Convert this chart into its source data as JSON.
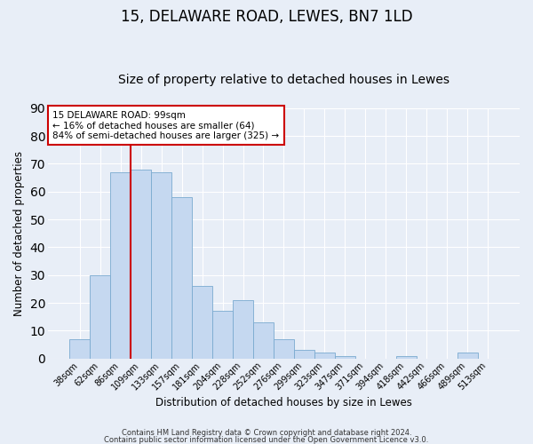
{
  "title1": "15, DELAWARE ROAD, LEWES, BN7 1LD",
  "title2": "Size of property relative to detached houses in Lewes",
  "xlabel": "Distribution of detached houses by size in Lewes",
  "ylabel": "Number of detached properties",
  "categories": [
    "38sqm",
    "62sqm",
    "86sqm",
    "109sqm",
    "133sqm",
    "157sqm",
    "181sqm",
    "204sqm",
    "228sqm",
    "252sqm",
    "276sqm",
    "299sqm",
    "323sqm",
    "347sqm",
    "371sqm",
    "394sqm",
    "418sqm",
    "442sqm",
    "466sqm",
    "489sqm",
    "513sqm"
  ],
  "values": [
    7,
    30,
    67,
    68,
    67,
    58,
    26,
    17,
    21,
    13,
    7,
    3,
    2,
    1,
    0,
    0,
    1,
    0,
    0,
    2,
    0
  ],
  "bar_color": "#c5d8f0",
  "bar_edge_color": "#7aaad0",
  "vline_color": "#cc0000",
  "annotation_title": "15 DELAWARE ROAD: 99sqm",
  "annotation_line1": "← 16% of detached houses are smaller (64)",
  "annotation_line2": "84% of semi-detached houses are larger (325) →",
  "annotation_box_color": "#ffffff",
  "annotation_box_edge": "#cc0000",
  "ylim": [
    0,
    90
  ],
  "yticks": [
    0,
    10,
    20,
    30,
    40,
    50,
    60,
    70,
    80,
    90
  ],
  "footer1": "Contains HM Land Registry data © Crown copyright and database right 2024.",
  "footer2": "Contains public sector information licensed under the Open Government Licence v3.0.",
  "bg_color": "#e8eef7",
  "grid_color": "#ffffff",
  "title1_fontsize": 12,
  "title2_fontsize": 10
}
